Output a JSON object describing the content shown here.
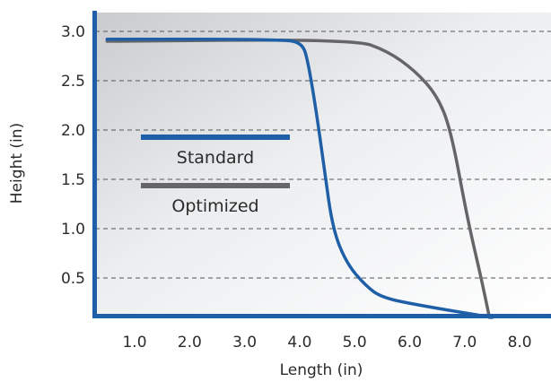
{
  "chart_data": {
    "type": "line",
    "xlabel": "Length (in)",
    "ylabel": "Height (in)",
    "xlim": [
      0.5,
      8.0
    ],
    "ylim": [
      0,
      3.0
    ],
    "x_ticks": [
      "1.0",
      "2.0",
      "3.0",
      "4.0",
      "5.0",
      "6.0",
      "7.0",
      "8.0"
    ],
    "y_ticks": [
      "0.5",
      "1.0",
      "1.5",
      "2.0",
      "2.5",
      "3.0"
    ],
    "grid": "horizontal-dashed",
    "legend_placement": "center-left",
    "series": [
      {
        "name": "Standard",
        "color": "#1f5fa8",
        "points": [
          [
            0.5,
            2.92
          ],
          [
            3.7,
            2.92
          ],
          [
            4.05,
            2.88
          ],
          [
            4.15,
            2.7
          ],
          [
            4.3,
            2.2
          ],
          [
            4.45,
            1.6
          ],
          [
            4.6,
            1.0
          ],
          [
            4.85,
            0.65
          ],
          [
            5.2,
            0.42
          ],
          [
            5.5,
            0.3
          ],
          [
            6.2,
            0.22
          ],
          [
            7.5,
            0.1
          ]
        ]
      },
      {
        "name": "Optimized",
        "color": "#666668",
        "points": [
          [
            0.5,
            2.9
          ],
          [
            5.0,
            2.92
          ],
          [
            5.6,
            2.8
          ],
          [
            6.1,
            2.6
          ],
          [
            6.5,
            2.35
          ],
          [
            6.75,
            2.0
          ],
          [
            7.05,
            1.1
          ],
          [
            7.3,
            0.5
          ],
          [
            7.45,
            0.1
          ]
        ]
      }
    ]
  }
}
